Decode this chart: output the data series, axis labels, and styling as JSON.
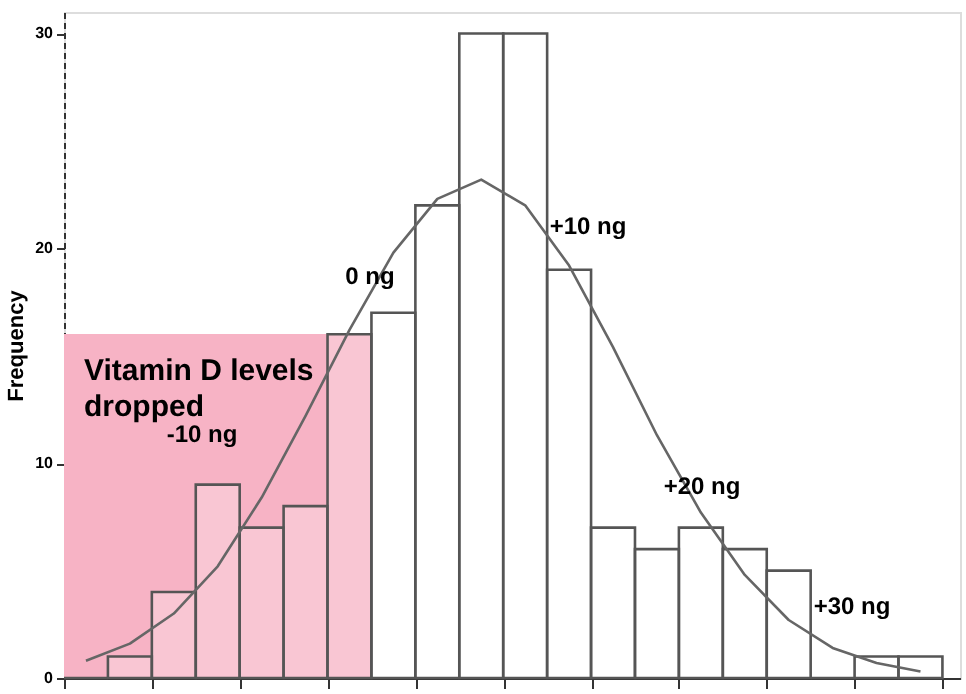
{
  "chart_data": {
    "type": "bar",
    "ylabel": "Frequency",
    "categories": [
      null,
      null,
      null,
      null,
      null,
      null,
      null,
      null,
      null,
      null,
      null,
      null,
      null,
      null,
      null,
      null,
      null,
      null,
      null,
      null
    ],
    "series": [
      {
        "color": "#555555",
        "values": [
          0,
          1,
          4,
          9,
          7,
          8,
          16,
          17,
          22,
          30,
          30,
          19,
          7,
          6,
          7,
          6,
          5,
          0,
          1,
          1
        ]
      },
      {
        "type": "line",
        "color": "#666666",
        "values": [
          0.8,
          1.6,
          3.0,
          5.2,
          8.4,
          12.2,
          16.2,
          19.8,
          22.3,
          23.2,
          22.0,
          19.2,
          15.4,
          11.3,
          7.7,
          4.8,
          2.7,
          1.4,
          0.7,
          0.3
        ]
      }
    ],
    "ylim": [
      0,
      31
    ],
    "yticks": [
      0,
      10,
      20,
      30
    ],
    "tick_labels": "y",
    "grid": false,
    "annotations": [
      "Vitamin D levels dropped",
      "-10 ng",
      "0 ng",
      "+10 ng",
      "+20 ng",
      "+30 ng"
    ]
  }
}
